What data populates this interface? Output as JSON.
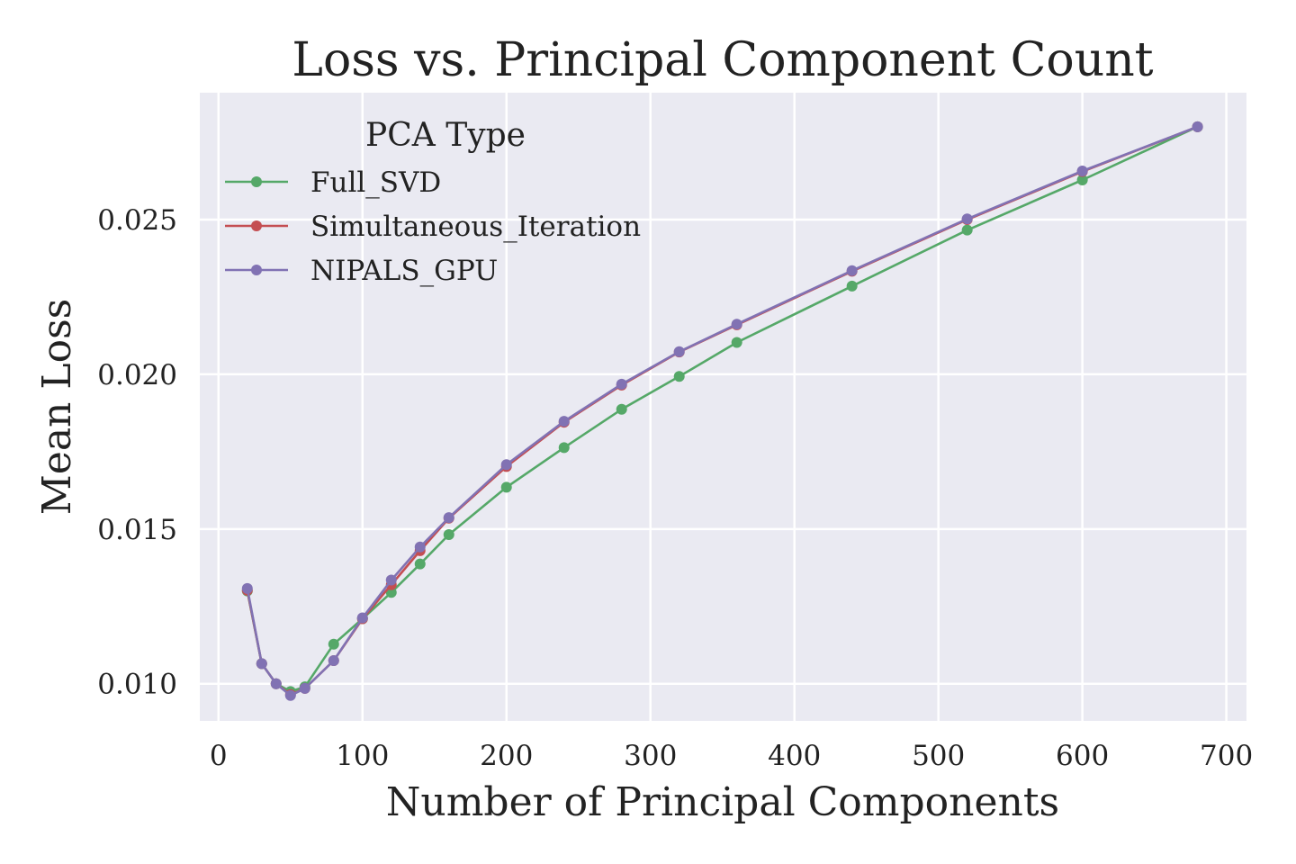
{
  "chart_data": {
    "type": "line",
    "title": "Loss vs. Principal Component Count",
    "xlabel": "Number of Principal Components",
    "ylabel": "Mean Loss",
    "xlim": [
      -13,
      714
    ],
    "ylim": [
      0.0088,
      0.0291
    ],
    "xticks": [
      0,
      100,
      200,
      300,
      400,
      500,
      600,
      700
    ],
    "xtick_labels": [
      "0",
      "100",
      "200",
      "300",
      "400",
      "500",
      "600",
      "700"
    ],
    "yticks": [
      0.01,
      0.015,
      0.02,
      0.025
    ],
    "ytick_labels": [
      "0.010",
      "0.015",
      "0.020",
      "0.025"
    ],
    "grid": true,
    "legend": {
      "title": "PCA Type",
      "placement": "top-left"
    },
    "x": [
      20,
      30,
      40,
      50,
      60,
      80,
      100,
      120,
      140,
      160,
      200,
      240,
      280,
      320,
      360,
      440,
      520,
      600,
      680
    ],
    "series": [
      {
        "name": "Full_SVD",
        "color": "#55a868",
        "values": [
          0.013,
          0.01065,
          0.01,
          0.00975,
          0.0099,
          0.01128,
          0.0121,
          0.01295,
          0.01387,
          0.01482,
          0.01635,
          0.01763,
          0.01887,
          0.01993,
          0.02103,
          0.02285,
          0.02466,
          0.02628,
          0.028
        ]
      },
      {
        "name": "Simultaneous_Iteration",
        "color": "#c44e52",
        "values": [
          0.01302,
          0.01065,
          0.01,
          0.00965,
          0.00985,
          0.01075,
          0.0121,
          0.0132,
          0.0143,
          0.01535,
          0.01702,
          0.01845,
          0.01965,
          0.02072,
          0.0216,
          0.02333,
          0.025,
          0.02655,
          0.028
        ]
      },
      {
        "name": "NIPALS_GPU",
        "color": "#8172b3",
        "values": [
          0.01308,
          0.01065,
          0.01,
          0.00962,
          0.00985,
          0.01075,
          0.01213,
          0.01335,
          0.01442,
          0.01537,
          0.01708,
          0.01848,
          0.01968,
          0.02073,
          0.02162,
          0.02335,
          0.02502,
          0.02657,
          0.028
        ]
      }
    ]
  }
}
